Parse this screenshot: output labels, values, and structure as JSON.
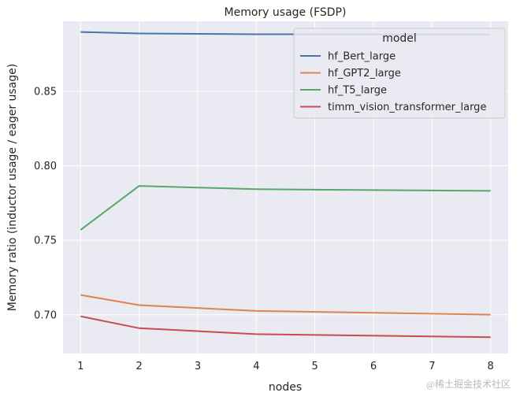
{
  "chart_data": {
    "type": "line",
    "title": "Memory usage (FSDP)",
    "xlabel": "nodes",
    "ylabel": "Memory ratio (inductor usage / eager usage)",
    "x": [
      1,
      2,
      4,
      8
    ],
    "xticks": [
      "1",
      "2",
      "3",
      "4",
      "5",
      "6",
      "7",
      "8"
    ],
    "xlim": [
      0.7,
      8.3
    ],
    "yticks": [
      "0.70",
      "0.75",
      "0.80",
      "0.85"
    ],
    "ylim": [
      0.674,
      0.897
    ],
    "grid": true,
    "legend": {
      "title": "model",
      "placement": "top-right"
    },
    "series": [
      {
        "name": "hf_Bert_large",
        "color": "#4c72b0",
        "values": [
          0.8898,
          0.8888,
          0.8883,
          0.8881
        ]
      },
      {
        "name": "hf_GPT2_large",
        "color": "#dd8452",
        "values": [
          0.7133,
          0.7065,
          0.7026,
          0.7001
        ]
      },
      {
        "name": "hf_T5_large",
        "color": "#55a868",
        "values": [
          0.757,
          0.7865,
          0.7843,
          0.7832
        ]
      },
      {
        "name": "timm_vision_transformer_large",
        "color": "#c44e52",
        "values": [
          0.699,
          0.691,
          0.687,
          0.685
        ]
      }
    ]
  },
  "watermark": "@稀土掘金技术社区"
}
